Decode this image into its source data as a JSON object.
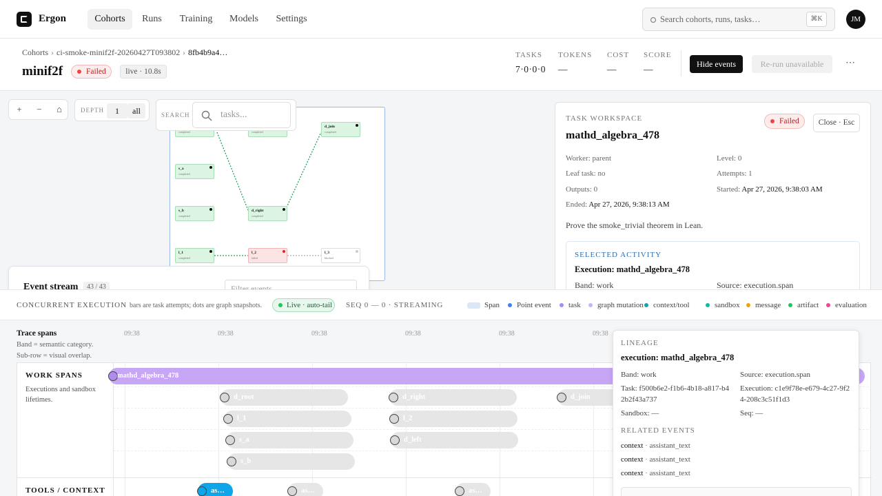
{
  "nav": {
    "brand": "Ergon",
    "tabs": [
      "Cohorts",
      "Runs",
      "Training",
      "Models",
      "Settings"
    ],
    "search_placeholder": "Search cohorts, runs, tasks…",
    "shortcut": "⌘K",
    "avatar": "JM"
  },
  "header": {
    "breadcrumbs": [
      "Cohorts",
      "ci-smoke-minif2f-20260427T093802",
      "8fb4b9a4…"
    ],
    "separator": "›",
    "title": "minif2f",
    "status": "Failed",
    "live": "live · 10.8s",
    "stats": [
      {
        "label": "TASKS",
        "value": "7·0·0·0"
      },
      {
        "label": "TOKENS",
        "value": "—"
      },
      {
        "label": "COST",
        "value": "—"
      },
      {
        "label": "SCORE",
        "value": "—"
      }
    ],
    "actions": [
      "Hide events",
      "Re-run unavailable",
      "⋯"
    ]
  },
  "graph": {
    "controls": [
      "+",
      "−",
      "⌂"
    ],
    "depth_label": "DEPTH",
    "depth_value": "1",
    "depth_all": "all",
    "search_label": "SEARCH",
    "search_placeholder": "tasks...",
    "nodes": [
      {
        "label": null,
        "status": "completed"
      },
      {
        "label": null,
        "status": "completed"
      },
      {
        "label": "d_join",
        "status": "completed"
      },
      {
        "label": "s_a",
        "status": "completed"
      },
      {
        "label": "s_b",
        "status": "completed"
      },
      {
        "label": "d_right",
        "status": "completed"
      },
      {
        "label": "l_1",
        "status": "completed"
      },
      {
        "label": "l_2",
        "status": "failed"
      },
      {
        "label": "l_3",
        "status": "blocked"
      }
    ]
  },
  "event_stream": {
    "title": "Event stream",
    "count": "43 / 43",
    "filter_placeholder": "Filter events"
  },
  "workspace": {
    "eyebrow": "TASK WORKSPACE",
    "title": "mathd_algebra_478",
    "status": "Failed",
    "close": "Close · Esc",
    "fields": [
      {
        "label": "Worker:",
        "value": "parent"
      },
      {
        "label": "Level:",
        "value": "0"
      },
      {
        "label": "Leaf task:",
        "value": "no"
      },
      {
        "label": "Attempts:",
        "value": "1"
      },
      {
        "label": "Outputs:",
        "value": "0"
      },
      {
        "label": "Started:",
        "value": "Apr 27, 2026, 9:38:03 AM"
      },
      {
        "label": "Ended:",
        "value": "Apr 27, 2026, 9:38:13 AM"
      }
    ],
    "description": "Prove the smoke_trivial theorem in Lean.",
    "activity": {
      "eyebrow": "SELECTED ACTIVITY",
      "title": "Execution: mathd_algebra_478",
      "band": "Band: work",
      "source": "Source: execution.span"
    }
  },
  "concurrent": {
    "title": "CONCURRENT EXECUTION",
    "note": "bars are task attempts; dots are graph snapshots.",
    "live": "Live · auto-tail",
    "seq": "SEQ 0 — 0 · STREAMING",
    "legend": [
      {
        "name": "Span",
        "color": "#dbe7f7"
      },
      {
        "name": "Point event",
        "color": "#3b82f6"
      },
      {
        "name": "task",
        "color": "#a78bfa"
      },
      {
        "name": "graph mutation",
        "color": "#c4b5fd"
      },
      {
        "name": "context/tool",
        "color": "#0ea5b7"
      },
      {
        "name": "sandbox",
        "color": "#14b8a6"
      },
      {
        "name": "message",
        "color": "#f59e0b"
      },
      {
        "name": "artifact",
        "color": "#22c55e"
      },
      {
        "name": "evaluation",
        "color": "#ec4899"
      }
    ]
  },
  "timeline": {
    "title": "Trace spans",
    "notes": [
      "Band = semantic category.",
      "Sub-row = visual overlap."
    ],
    "ticks": [
      "09:38",
      "09:38",
      "09:38",
      "09:38",
      "09:38",
      "09:38"
    ],
    "bands": [
      {
        "name": "WORK SPANS",
        "description": "Executions and sandbox lifetimes.",
        "spans": [
          "mathd_algebra_478",
          "d_root",
          "d_right",
          "d_join",
          "l_1",
          "l_2",
          "s_a",
          "d_left",
          "s_b"
        ]
      },
      {
        "name": "TOOLS / CONTEXT",
        "spans": [
          "as…",
          "as…",
          "as…"
        ]
      }
    ]
  },
  "lineage": {
    "eyebrow": "LINEAGE",
    "title": "execution: mathd_algebra_478",
    "fields": [
      "Band: work",
      "Source: execution.span",
      "Task: f500b6e2-f1b6-4b18-a817-b42b2f43a737",
      "Execution: c1e9f78e-e679-4c27-9f24-208c3c51f1d3",
      "Sandbox: —",
      "Seq: —"
    ],
    "related_title": "RELATED EVENTS",
    "related": [
      {
        "kind": "context",
        "name": "assistant_text"
      },
      {
        "kind": "context",
        "name": "assistant_text"
      },
      {
        "kind": "context",
        "name": "assistant_text"
      }
    ],
    "separator": "·"
  }
}
